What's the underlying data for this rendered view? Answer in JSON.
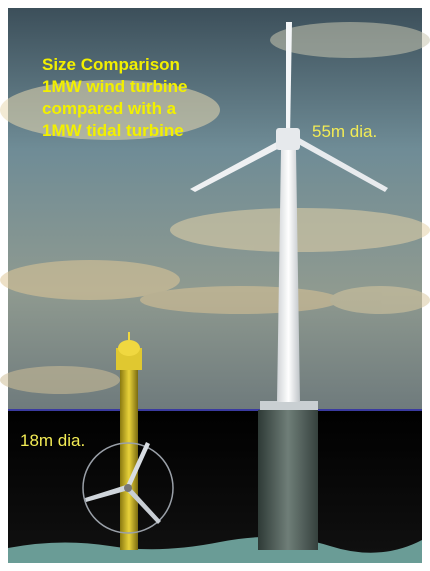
{
  "caption": {
    "lines": [
      "Size Comparison",
      "1MW wind turbine",
      "compared with a",
      "1MW tidal turbine"
    ]
  },
  "labels": {
    "wind_diameter": "55m dia.",
    "tidal_diameter": "18m dia."
  }
}
